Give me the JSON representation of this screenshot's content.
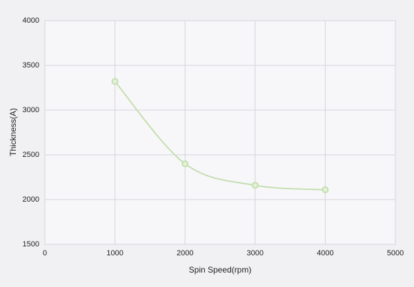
{
  "chart_data": {
    "type": "line",
    "x_label": "Spin Speed(rpm)",
    "y_label": "Thickness(A)",
    "x": [
      1000,
      2000,
      3000,
      4000
    ],
    "series": [
      {
        "color": "#c5deb0",
        "values": [
          3320,
          2400,
          2160,
          2110
        ]
      }
    ],
    "xlim": [
      0,
      5000
    ],
    "xticks": [
      0,
      1000,
      2000,
      3000,
      4000,
      5000
    ],
    "ylim": [
      1500,
      4000
    ],
    "yticks": [
      1500,
      2000,
      2500,
      3000,
      3500,
      4000
    ],
    "grid": true,
    "smooth": true
  }
}
